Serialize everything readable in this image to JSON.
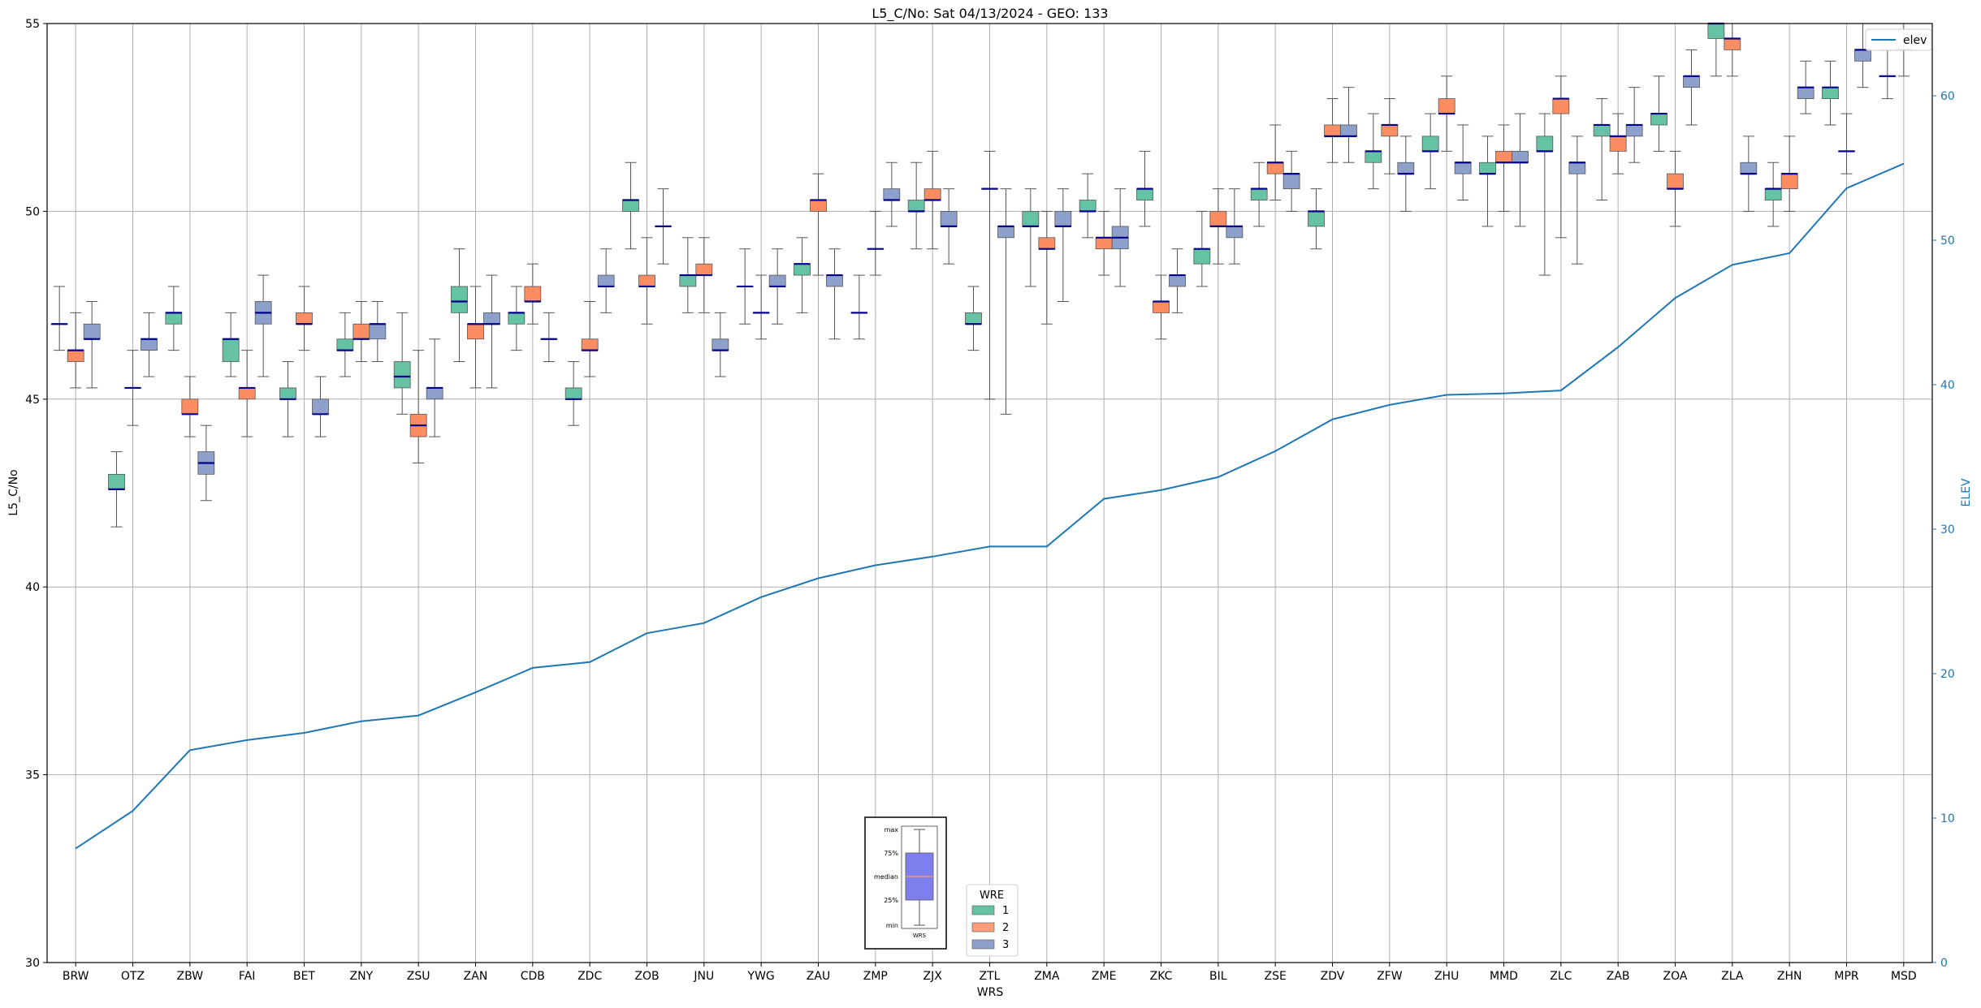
{
  "chart_data": {
    "type": "box",
    "title": "L5_C/No: Sat 04/13/2024 - GEO: 133",
    "xlabel": "WRS",
    "ylabel": "L5_C/No",
    "y2label": "ELEV",
    "ylim": [
      30,
      55
    ],
    "y2lim": [
      0,
      65
    ],
    "yticks": [
      30,
      35,
      40,
      45,
      50,
      55
    ],
    "y2ticks": [
      0,
      10,
      20,
      30,
      40,
      50,
      60
    ],
    "grid": true,
    "categories": [
      "BRW",
      "OTZ",
      "ZBW",
      "FAI",
      "BET",
      "ZNY",
      "ZSU",
      "ZAN",
      "CDB",
      "ZDC",
      "ZOB",
      "JNU",
      "YWG",
      "ZAU",
      "ZMP",
      "ZJX",
      "ZTL",
      "ZMA",
      "ZME",
      "ZKC",
      "BIL",
      "ZSE",
      "ZDV",
      "ZFW",
      "ZHU",
      "MMD",
      "ZLC",
      "ZAB",
      "ZOA",
      "ZLA",
      "ZHN",
      "MPR",
      "MSD"
    ],
    "colors": {
      "1": "#66c2a5",
      "2": "#fc8d62",
      "3": "#8da0cb",
      "median": "#00008b",
      "elev": "#1f77b4",
      "whisker": "#555555"
    },
    "wre_legend": {
      "title": "WRE",
      "labels": [
        "1",
        "2",
        "3"
      ],
      "placement": "bottom-center"
    },
    "elev_legend": {
      "label": "elev",
      "placement": "top-right"
    },
    "inset_legend": {
      "labels": [
        "max",
        "75%",
        "median",
        "25%",
        "min"
      ],
      "xlabel": "WRS",
      "placement": "bottom-center"
    },
    "boxes": [
      [
        [
          46.3,
          47.0,
          47.0,
          47.0,
          48.0
        ],
        [
          45.3,
          46.0,
          46.3,
          46.3,
          47.3
        ],
        [
          45.3,
          46.6,
          46.6,
          47.0,
          47.6
        ]
      ],
      [
        [
          41.6,
          42.6,
          42.6,
          43.0,
          43.6
        ],
        [
          44.3,
          45.3,
          45.3,
          45.3,
          46.3
        ],
        [
          45.6,
          46.3,
          46.6,
          46.6,
          47.3
        ]
      ],
      [
        [
          46.3,
          47.0,
          47.3,
          47.3,
          48.0
        ],
        [
          44.0,
          44.6,
          44.6,
          45.0,
          45.6
        ],
        [
          42.3,
          43.0,
          43.3,
          43.6,
          44.3
        ]
      ],
      [
        [
          45.6,
          46.0,
          46.6,
          46.6,
          47.3
        ],
        [
          44.0,
          45.0,
          45.3,
          45.3,
          46.3
        ],
        [
          45.6,
          47.0,
          47.3,
          47.6,
          48.3
        ]
      ],
      [
        [
          44.0,
          45.0,
          45.0,
          45.3,
          46.0
        ],
        [
          46.3,
          47.0,
          47.0,
          47.3,
          48.0
        ],
        [
          44.0,
          44.6,
          44.6,
          45.0,
          45.6
        ]
      ],
      [
        [
          45.6,
          46.3,
          46.3,
          46.6,
          47.3
        ],
        [
          46.0,
          46.6,
          46.6,
          47.0,
          47.6
        ],
        [
          46.0,
          46.6,
          47.0,
          47.0,
          47.6
        ]
      ],
      [
        [
          44.6,
          45.3,
          45.6,
          46.0,
          47.3
        ],
        [
          43.3,
          44.0,
          44.3,
          44.6,
          46.3
        ],
        [
          44.0,
          45.0,
          45.3,
          45.3,
          46.6
        ]
      ],
      [
        [
          46.0,
          47.3,
          47.6,
          48.0,
          49.0
        ],
        [
          45.3,
          46.6,
          47.0,
          47.0,
          48.0
        ],
        [
          45.3,
          47.0,
          47.0,
          47.3,
          48.3
        ]
      ],
      [
        [
          46.3,
          47.0,
          47.3,
          47.3,
          48.0
        ],
        [
          47.0,
          47.6,
          47.6,
          48.0,
          48.6
        ],
        [
          46.0,
          46.6,
          46.6,
          46.6,
          47.3
        ]
      ],
      [
        [
          44.3,
          45.0,
          45.0,
          45.3,
          46.0
        ],
        [
          45.6,
          46.3,
          46.3,
          46.6,
          47.6
        ],
        [
          47.3,
          48.0,
          48.0,
          48.3,
          49.0
        ]
      ],
      [
        [
          49.0,
          50.0,
          50.3,
          50.3,
          51.3
        ],
        [
          47.0,
          48.0,
          48.0,
          48.3,
          49.3
        ],
        [
          48.6,
          49.6,
          49.6,
          49.6,
          50.6
        ]
      ],
      [
        [
          47.3,
          48.0,
          48.3,
          48.3,
          49.3
        ],
        [
          47.3,
          48.3,
          48.3,
          48.6,
          49.3
        ],
        [
          45.6,
          46.3,
          46.3,
          46.6,
          47.3
        ]
      ],
      [
        [
          47.0,
          48.0,
          48.0,
          48.0,
          49.0
        ],
        [
          46.6,
          47.3,
          47.3,
          47.3,
          48.3
        ],
        [
          47.0,
          48.0,
          48.0,
          48.3,
          49.0
        ]
      ],
      [
        [
          47.3,
          48.3,
          48.6,
          48.6,
          49.3
        ],
        [
          48.3,
          50.0,
          50.3,
          50.3,
          51.0
        ],
        [
          46.6,
          48.0,
          48.3,
          48.3,
          49.0
        ]
      ],
      [
        [
          46.6,
          47.3,
          47.3,
          47.3,
          48.3
        ],
        [
          48.3,
          49.0,
          49.0,
          49.0,
          50.0
        ],
        [
          49.6,
          50.3,
          50.3,
          50.6,
          51.3
        ]
      ],
      [
        [
          49.0,
          50.0,
          50.0,
          50.3,
          51.3
        ],
        [
          49.0,
          50.3,
          50.3,
          50.6,
          51.6
        ],
        [
          48.6,
          49.6,
          49.6,
          50.0,
          50.6
        ]
      ],
      [
        [
          46.3,
          47.0,
          47.0,
          47.3,
          48.0
        ],
        [
          45.0,
          50.6,
          50.6,
          50.6,
          51.6
        ],
        [
          44.6,
          49.3,
          49.6,
          49.6,
          50.6
        ]
      ],
      [
        [
          48.0,
          49.6,
          49.6,
          50.0,
          50.6
        ],
        [
          47.0,
          49.0,
          49.0,
          49.3,
          50.0
        ],
        [
          47.6,
          49.6,
          49.6,
          50.0,
          50.6
        ]
      ],
      [
        [
          49.3,
          50.0,
          50.0,
          50.3,
          51.0
        ],
        [
          48.3,
          49.0,
          49.3,
          49.3,
          50.0
        ],
        [
          48.0,
          49.0,
          49.3,
          49.6,
          50.6
        ]
      ],
      [
        [
          49.6,
          50.3,
          50.6,
          50.6,
          51.6
        ],
        [
          46.6,
          47.3,
          47.6,
          47.6,
          48.3
        ],
        [
          47.3,
          48.0,
          48.3,
          48.3,
          49.0
        ]
      ],
      [
        [
          48.0,
          48.6,
          49.0,
          49.0,
          50.0
        ],
        [
          48.6,
          49.6,
          49.6,
          50.0,
          50.6
        ],
        [
          48.6,
          49.3,
          49.6,
          49.6,
          50.6
        ]
      ],
      [
        [
          49.6,
          50.3,
          50.6,
          50.6,
          51.3
        ],
        [
          50.3,
          51.0,
          51.3,
          51.3,
          52.3
        ],
        [
          50.0,
          50.6,
          51.0,
          51.0,
          51.6
        ]
      ],
      [
        [
          49.0,
          49.6,
          50.0,
          50.0,
          50.6
        ],
        [
          51.3,
          52.0,
          52.0,
          52.3,
          53.0
        ],
        [
          51.3,
          52.0,
          52.0,
          52.3,
          53.3
        ]
      ],
      [
        [
          50.6,
          51.3,
          51.6,
          51.6,
          52.6
        ],
        [
          51.0,
          52.0,
          52.3,
          52.3,
          53.0
        ],
        [
          50.0,
          51.0,
          51.0,
          51.3,
          52.0
        ]
      ],
      [
        [
          50.6,
          51.6,
          51.6,
          52.0,
          52.6
        ],
        [
          51.6,
          52.6,
          52.6,
          53.0,
          53.6
        ],
        [
          50.3,
          51.0,
          51.3,
          51.3,
          52.3
        ]
      ],
      [
        [
          49.6,
          51.0,
          51.0,
          51.3,
          52.0
        ],
        [
          50.0,
          51.3,
          51.3,
          51.6,
          52.3
        ],
        [
          49.6,
          51.3,
          51.3,
          51.6,
          52.6
        ]
      ],
      [
        [
          48.3,
          51.6,
          51.6,
          52.0,
          52.6
        ],
        [
          49.3,
          52.6,
          53.0,
          53.0,
          53.6
        ],
        [
          48.6,
          51.0,
          51.3,
          51.3,
          52.0
        ]
      ],
      [
        [
          50.3,
          52.0,
          52.3,
          52.3,
          53.0
        ],
        [
          51.0,
          51.6,
          52.0,
          52.0,
          52.6
        ],
        [
          51.3,
          52.0,
          52.3,
          52.3,
          53.3
        ]
      ],
      [
        [
          51.6,
          52.3,
          52.6,
          52.6,
          53.6
        ],
        [
          49.6,
          50.6,
          50.6,
          51.0,
          51.6
        ],
        [
          52.3,
          53.3,
          53.6,
          53.6,
          54.3
        ]
      ],
      [
        [
          53.6,
          54.6,
          55.0,
          55.0,
          55.6
        ],
        [
          53.6,
          54.3,
          54.6,
          54.6,
          55.3
        ],
        [
          50.0,
          51.0,
          51.0,
          51.3,
          52.0
        ]
      ],
      [
        [
          49.6,
          50.3,
          50.6,
          50.6,
          51.3
        ],
        [
          50.0,
          50.6,
          51.0,
          51.0,
          52.0
        ],
        [
          52.6,
          53.0,
          53.3,
          53.3,
          54.0
        ]
      ],
      [
        [
          52.3,
          53.0,
          53.3,
          53.3,
          54.0
        ],
        [
          51.0,
          51.6,
          51.6,
          51.6,
          52.6
        ],
        [
          53.3,
          54.0,
          54.3,
          54.3,
          55.0
        ]
      ],
      [
        [
          53.0,
          53.6,
          53.6,
          53.6,
          54.3
        ],
        [
          53.6,
          54.3,
          54.3,
          54.3,
          55.0
        ],
        [
          null,
          null,
          null,
          null,
          null
        ]
      ]
    ],
    "elev": [
      7.9,
      10.5,
      14.7,
      15.4,
      15.9,
      16.7,
      17.1,
      18.7,
      20.4,
      20.8,
      22.8,
      23.5,
      25.3,
      26.6,
      27.5,
      28.1,
      28.8,
      28.8,
      32.1,
      32.7,
      33.6,
      35.4,
      37.6,
      38.6,
      39.3,
      39.4,
      39.6,
      42.6,
      46.0,
      48.3,
      49.1,
      53.6,
      55.3
    ]
  }
}
